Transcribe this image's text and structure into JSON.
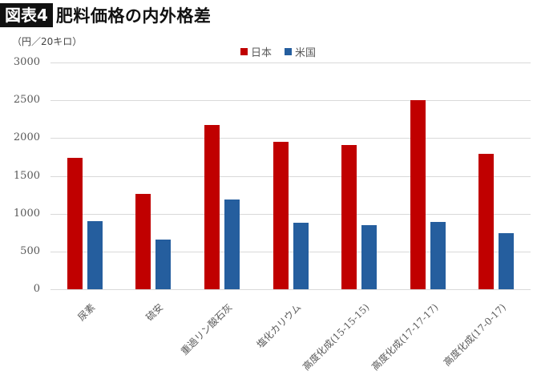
{
  "header": {
    "badge": "図表4",
    "title": "肥料価格の内外格差"
  },
  "unit_label": "（円／20キロ）",
  "legend": [
    {
      "label": "日本",
      "color": "#c00000"
    },
    {
      "label": "米国",
      "color": "#255e9e"
    }
  ],
  "y_ticks": [
    "3000",
    "2500",
    "2000",
    "1500",
    "1000",
    "500",
    "0"
  ],
  "categories": [
    "尿素",
    "硫安",
    "重過リン酸石灰",
    "塩化カリウム",
    "高度化成(15-15-15)",
    "高度化成(17-17-17)",
    "高度化成(17-0-17)"
  ],
  "chart_data": {
    "type": "bar",
    "title": "肥料価格の内外格差",
    "subtitle": "図表4",
    "xlabel": "",
    "ylabel": "（円／20キロ）",
    "ylim": [
      0,
      3000
    ],
    "yticks": [
      0,
      500,
      1000,
      1500,
      2000,
      2500,
      3000
    ],
    "grid": true,
    "legend_position": "top",
    "categories": [
      "尿素",
      "硫安",
      "重過リン酸石灰",
      "塩化カリウム",
      "高度化成(15-15-15)",
      "高度化成(17-17-17)",
      "高度化成(17-0-17)"
    ],
    "series": [
      {
        "name": "日本",
        "color": "#c00000",
        "values": [
          1740,
          1260,
          2170,
          1950,
          1910,
          2500,
          1790
        ]
      },
      {
        "name": "米国",
        "color": "#255e9e",
        "values": [
          900,
          660,
          1190,
          880,
          850,
          890,
          745
        ]
      }
    ]
  }
}
